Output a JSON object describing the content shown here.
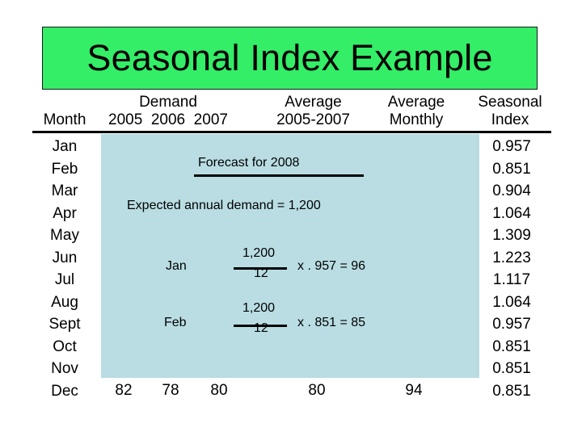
{
  "title": "Seasonal Index Example",
  "headers": {
    "month": "Month",
    "demand": "Demand",
    "years": "2005  2006  2007",
    "average": "Average",
    "average_years": "2005-2007",
    "average_monthly_1": "Average",
    "average_monthly_2": "Monthly",
    "seasonal_1": "Seasonal",
    "seasonal_2": "Index"
  },
  "months": [
    "Jan",
    "Feb",
    "Mar",
    "Apr",
    "May",
    "Jun",
    "Jul",
    "Aug",
    "Sept",
    "Oct",
    "Nov",
    "Dec"
  ],
  "seasonal_index": [
    "0.957",
    "0.851",
    "0.904",
    "1.064",
    "1.309",
    "1.223",
    "1.117",
    "1.064",
    "0.957",
    "0.851",
    "0.851",
    "0.851"
  ],
  "dec_row": {
    "y2005": "82",
    "y2006": "78",
    "y2007": "80",
    "average": "80",
    "average_monthly": "94"
  },
  "forecast": {
    "heading": "Forecast for 2008",
    "expected": "Expected annual demand = 1,200",
    "jan_label": "Jan",
    "jan_numerator": "1,200",
    "jan_denominator": "12",
    "jan_result": "x . 957 = 96",
    "feb_label": "Feb",
    "feb_numerator": "1,200",
    "feb_denominator": "12",
    "feb_result": "x . 851 = 85"
  },
  "colors": {
    "title_bg": "#33ee66",
    "overlay_bg": "#b9dde3"
  }
}
